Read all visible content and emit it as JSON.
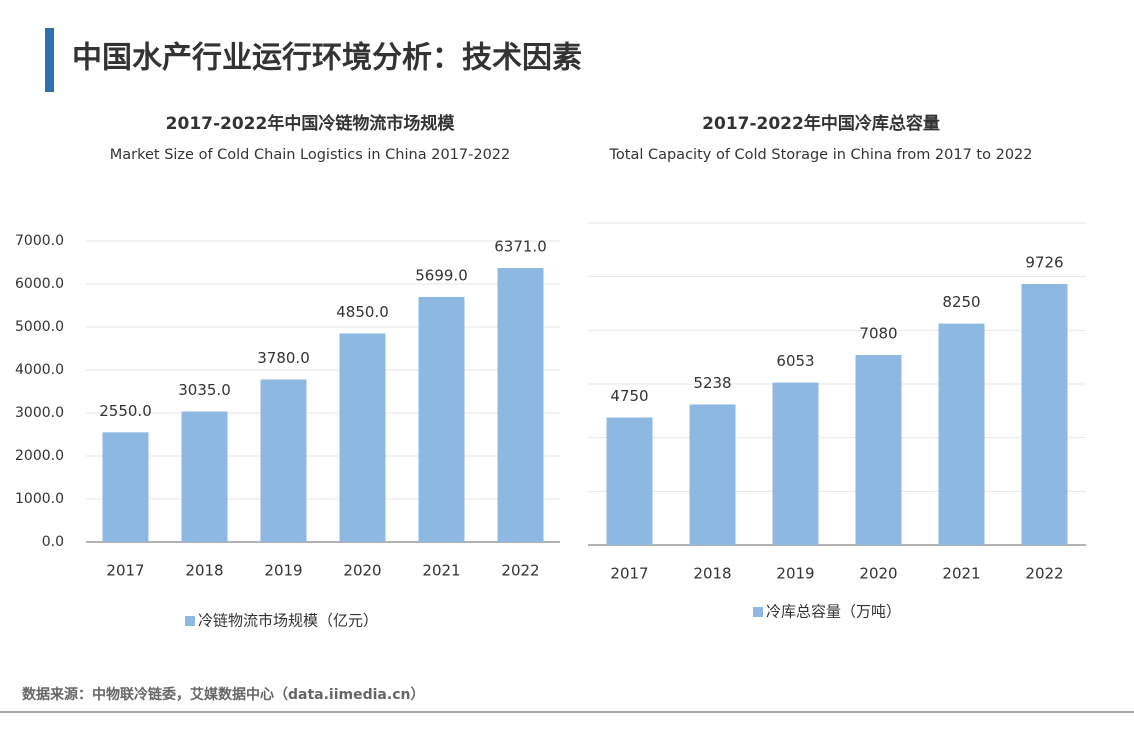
{
  "title": "中国水产行业运行环境分析：技术因素",
  "source": "数据来源：中物联冷链委，艾媒数据中心（data.iimedia.cn）",
  "chart_data": [
    {
      "type": "bar",
      "title": "2017-2022年中国冷链物流市场规模",
      "subtitle": "Market Size of Cold Chain Logistics in China 2017-2022",
      "categories": [
        "2017",
        "2018",
        "2019",
        "2020",
        "2021",
        "2022"
      ],
      "series": [
        {
          "name": "冷链物流市场规模（亿元）",
          "color": "#8db8e1",
          "values": [
            2550,
            3035,
            3780,
            4850,
            5699,
            6371
          ],
          "value_labels": [
            "2550.0",
            "3035.0",
            "3780.0",
            "4850.0",
            "5699.0",
            "6371.0"
          ]
        }
      ],
      "ylim": [
        0,
        7000
      ],
      "yticks": [
        {
          "value": 0,
          "label": "0.0"
        },
        {
          "value": 1000,
          "label": "1000.0"
        },
        {
          "value": 2000,
          "label": "2000.0"
        },
        {
          "value": 3000,
          "label": "3000.0"
        },
        {
          "value": 4000,
          "label": "4000.0"
        },
        {
          "value": 5000,
          "label": "5000.0"
        },
        {
          "value": 6000,
          "label": "6000.0"
        },
        {
          "value": 7000,
          "label": "7000.0"
        }
      ],
      "grid": true,
      "show_ytick_labels": true,
      "legend": "bottom"
    },
    {
      "type": "bar",
      "title": "2017-2022年中国冷库总容量",
      "subtitle": "Total Capacity of Cold Storage in China from 2017 to 2022",
      "categories": [
        "2017",
        "2018",
        "2019",
        "2020",
        "2021",
        "2022"
      ],
      "series": [
        {
          "name": "冷库总容量（万吨）",
          "color": "#8db8e1",
          "values": [
            4750,
            5238,
            6053,
            7080,
            8250,
            9726
          ]
        }
      ],
      "ylim": [
        0,
        12000
      ],
      "yticks": [
        0,
        2000,
        4000,
        6000,
        8000,
        10000,
        12000
      ],
      "grid": true,
      "show_ytick_labels": false,
      "legend": "bottom"
    }
  ]
}
